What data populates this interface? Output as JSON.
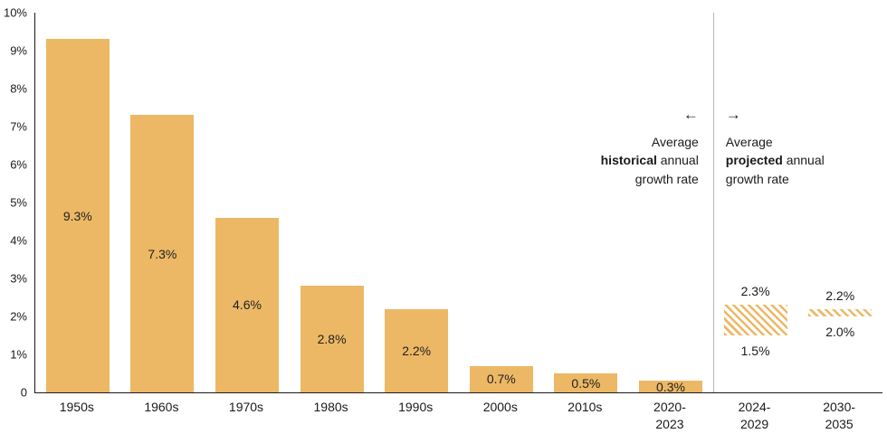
{
  "colors": {
    "bar": "#ecb865",
    "hatch": "#ecb865",
    "divider": "#b5b5b5",
    "axis": "#1a1a1a",
    "text": "#1a1a1a"
  },
  "annotations": {
    "historical": {
      "arrow": "←",
      "line1": "Average",
      "line2_bold": "historical",
      "line2_rest": " annual",
      "line3": "growth rate"
    },
    "projected": {
      "arrow": "→",
      "line1": "Average",
      "line2_bold": "projected",
      "line2_rest": " annual",
      "line3": "growth rate"
    }
  },
  "chart_data": {
    "type": "bar",
    "title": "",
    "xlabel": "",
    "ylabel": "",
    "ylim": [
      0,
      10
    ],
    "grid": false,
    "legend": "none",
    "y_ticks": [
      {
        "value": 10,
        "label": "10%"
      },
      {
        "value": 9,
        "label": "9%"
      },
      {
        "value": 8,
        "label": "8%"
      },
      {
        "value": 7,
        "label": "7%"
      },
      {
        "value": 6,
        "label": "6%"
      },
      {
        "value": 5,
        "label": "5%"
      },
      {
        "value": 4,
        "label": "4%"
      },
      {
        "value": 3,
        "label": "3%"
      },
      {
        "value": 2,
        "label": "2%"
      },
      {
        "value": 1,
        "label": "1%"
      },
      {
        "value": 0,
        "label": "0"
      }
    ],
    "categories": [
      "1950s",
      "1960s",
      "1970s",
      "1980s",
      "1990s",
      "2000s",
      "2010s",
      "2020-\n2023",
      "2024-\n2029",
      "2030-\n2035"
    ],
    "bars": [
      {
        "category": "1950s",
        "value": 9.3,
        "label": "9.3%"
      },
      {
        "category": "1960s",
        "value": 7.3,
        "label": "7.3%"
      },
      {
        "category": "1970s",
        "value": 4.6,
        "label": "4.6%"
      },
      {
        "category": "1980s",
        "value": 2.8,
        "label": "2.8%"
      },
      {
        "category": "1990s",
        "value": 2.2,
        "label": "2.2%"
      },
      {
        "category": "2000s",
        "value": 0.7,
        "label": "0.7%"
      },
      {
        "category": "2010s",
        "value": 0.5,
        "label": "0.5%"
      },
      {
        "category": "2020-2023",
        "value": 0.3,
        "label": "0.3%"
      }
    ],
    "projected": [
      {
        "category": "2024-2029",
        "low": 1.5,
        "high": 2.3,
        "low_label": "1.5%",
        "high_label": "2.3%"
      },
      {
        "category": "2030-2035",
        "low": 2.0,
        "high": 2.2,
        "low_label": "2.0%",
        "high_label": "2.2%"
      }
    ]
  }
}
